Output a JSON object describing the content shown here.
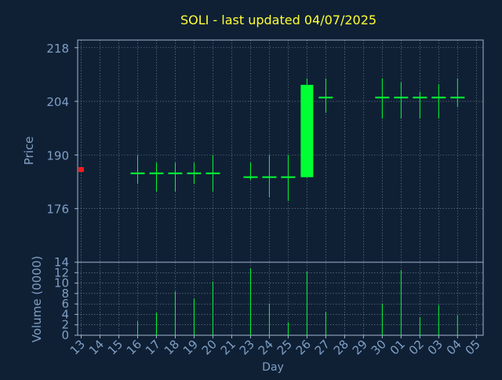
{
  "colors": {
    "background": "#0f2035",
    "title": "#ffff33",
    "axis_text": "#7f9fc4",
    "frame": "#9fb4cc",
    "grid": "#c8d4e0",
    "candle": "#00ff33",
    "last_close_marker": "#ff1a1a"
  },
  "chart_data": [
    {
      "type": "candlestick",
      "title": "SOLI - last updated 04/07/2025",
      "ylabel": "Price",
      "ylim": [
        162,
        220
      ],
      "yticks": [
        176,
        190,
        204,
        218
      ],
      "grid": true,
      "categories": [
        "13",
        "14",
        "15",
        "16",
        "17",
        "18",
        "19",
        "20",
        "21",
        "23",
        "24",
        "25",
        "26",
        "27",
        "28",
        "29",
        "30",
        "01",
        "02",
        "03",
        "04",
        "05"
      ],
      "last_close_marker": {
        "x": "13",
        "value": 186.2
      },
      "candles": [
        {
          "x": "16",
          "open": 185.2,
          "high": 190,
          "low": 182.5,
          "close": 185.2
        },
        {
          "x": "17",
          "open": 185.2,
          "high": 188,
          "low": 180.5,
          "close": 185.2
        },
        {
          "x": "18",
          "open": 185.2,
          "high": 188,
          "low": 180.5,
          "close": 185.2
        },
        {
          "x": "19",
          "open": 185.2,
          "high": 188,
          "low": 182.5,
          "close": 185.2
        },
        {
          "x": "20",
          "open": 185.2,
          "high": 190,
          "low": 180.5,
          "close": 185.2
        },
        {
          "x": "23",
          "open": 184.2,
          "high": 188,
          "low": 183.5,
          "close": 184.2
        },
        {
          "x": "24",
          "open": 184.2,
          "high": 190,
          "low": 179,
          "close": 184.2
        },
        {
          "x": "25",
          "open": 184.2,
          "high": 190,
          "low": 178,
          "close": 184.2
        },
        {
          "x": "26",
          "open": 184.2,
          "high": 210,
          "low": 184.2,
          "close": 208.3
        },
        {
          "x": "27",
          "open": 205,
          "high": 210,
          "low": 201,
          "close": 205
        },
        {
          "x": "30",
          "open": 205,
          "high": 210,
          "low": 199.5,
          "close": 205
        },
        {
          "x": "01",
          "open": 205,
          "high": 209,
          "low": 199.5,
          "close": 205
        },
        {
          "x": "02",
          "open": 205,
          "high": 206.5,
          "low": 199.5,
          "close": 205
        },
        {
          "x": "03",
          "open": 205,
          "high": 208.5,
          "low": 199.5,
          "close": 205
        },
        {
          "x": "04",
          "open": 205,
          "high": 210,
          "low": 202.5,
          "close": 205
        }
      ]
    },
    {
      "type": "bar",
      "ylabel": "Volume (0000)",
      "xlabel": "Day",
      "ylim": [
        0,
        14
      ],
      "yticks": [
        0,
        2,
        4,
        6,
        8,
        10,
        12,
        14
      ],
      "grid": true,
      "categories": [
        "13",
        "14",
        "15",
        "16",
        "17",
        "18",
        "19",
        "20",
        "21",
        "23",
        "24",
        "25",
        "26",
        "27",
        "28",
        "29",
        "30",
        "01",
        "02",
        "03",
        "04",
        "05"
      ],
      "volumes": [
        {
          "x": "16",
          "value": 2.7
        },
        {
          "x": "17",
          "value": 4.3
        },
        {
          "x": "18",
          "value": 8.4
        },
        {
          "x": "19",
          "value": 7.0
        },
        {
          "x": "20",
          "value": 10.3
        },
        {
          "x": "23",
          "value": 12.8
        },
        {
          "x": "24",
          "value": 6.0
        },
        {
          "x": "25",
          "value": 2.5
        },
        {
          "x": "26",
          "value": 12.2
        },
        {
          "x": "27",
          "value": 4.5
        },
        {
          "x": "30",
          "value": 6.0
        },
        {
          "x": "01",
          "value": 12.5
        },
        {
          "x": "02",
          "value": 3.5
        },
        {
          "x": "03",
          "value": 5.8
        },
        {
          "x": "04",
          "value": 3.8
        }
      ]
    }
  ]
}
